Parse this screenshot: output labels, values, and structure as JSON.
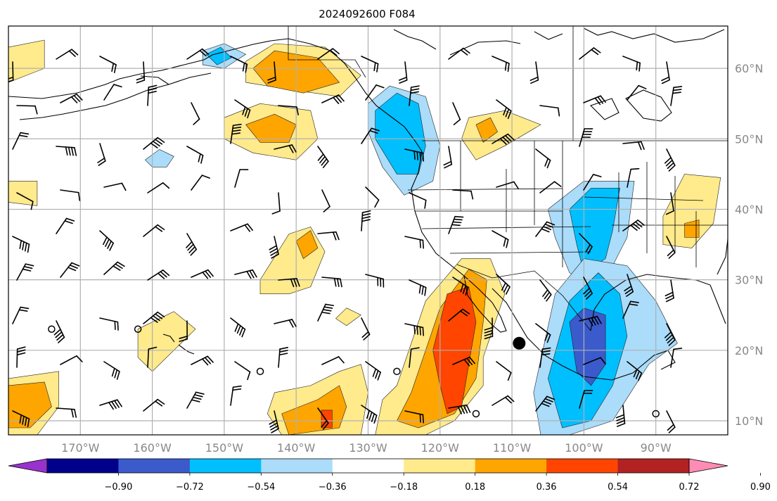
{
  "title": "2024092600 F084",
  "map": {
    "projection": "PlateCarree",
    "lon_range": [
      -180,
      -80
    ],
    "lat_range": [
      8,
      66
    ],
    "grid": true,
    "lat_ticks": [
      {
        "lat": 60,
        "label": "60°N"
      },
      {
        "lat": 50,
        "label": "50°N"
      },
      {
        "lat": 40,
        "label": "40°N"
      },
      {
        "lat": 30,
        "label": "30°N"
      },
      {
        "lat": 20,
        "label": "20°N"
      },
      {
        "lat": 10,
        "label": "10°N"
      }
    ],
    "lon_ticks": [
      {
        "lon": -170,
        "label": "170°W"
      },
      {
        "lon": -160,
        "label": "160°W"
      },
      {
        "lon": -150,
        "label": "150°W"
      },
      {
        "lon": -140,
        "label": "140°W"
      },
      {
        "lon": -130,
        "label": "130°W"
      },
      {
        "lon": -120,
        "label": "120°W"
      },
      {
        "lon": -110,
        "label": "110°W"
      },
      {
        "lon": -100,
        "label": "100°W"
      },
      {
        "lon": -90,
        "label": "90°W"
      }
    ]
  },
  "colorbar": {
    "extend": "both",
    "colors": [
      "#9932cc",
      "#00008b",
      "#3b5bcc",
      "#00bfff",
      "#abdcfa",
      "#ffffff",
      "#ffea8c",
      "#ffa500",
      "#ff4500",
      "#b22222",
      "#ff8cb4"
    ],
    "tick_labels": [
      {
        "value": -0.9,
        "label": "−0.90"
      },
      {
        "value": -0.72,
        "label": "−0.72"
      },
      {
        "value": -0.54,
        "label": "−0.54"
      },
      {
        "value": -0.36,
        "label": "−0.36"
      },
      {
        "value": -0.18,
        "label": "−0.18"
      },
      {
        "value": 0.18,
        "label": "0.18"
      },
      {
        "value": 0.36,
        "label": "0.36"
      },
      {
        "value": 0.54,
        "label": "0.54"
      },
      {
        "value": 0.72,
        "label": "0.72"
      },
      {
        "value": 0.9,
        "label": "0.90"
      }
    ]
  },
  "colors": {
    "pos1": "#ffea8c",
    "pos2": "#ffa500",
    "pos3": "#ff4500",
    "neg1": "#abdcfa",
    "neg2": "#00bfff",
    "neg3": "#3b5bcc"
  },
  "fields": [
    {
      "level": "pos1",
      "pts": [
        [
          -147,
          61
        ],
        [
          -143,
          63.5
        ],
        [
          -136,
          63
        ],
        [
          -131,
          59
        ],
        [
          -134,
          56
        ],
        [
          -141,
          57
        ],
        [
          -147,
          58
        ]
      ]
    },
    {
      "level": "pos2",
      "pts": [
        [
          -146,
          60
        ],
        [
          -143,
          62.5
        ],
        [
          -137,
          61.5
        ],
        [
          -134,
          58
        ],
        [
          -139,
          56.5
        ],
        [
          -144,
          57.5
        ]
      ]
    },
    {
      "level": "pos1",
      "pts": [
        [
          -150,
          53
        ],
        [
          -145,
          55
        ],
        [
          -138,
          54
        ],
        [
          -137,
          50
        ],
        [
          -140,
          47
        ],
        [
          -146,
          48
        ],
        [
          -150,
          50
        ]
      ]
    },
    {
      "level": "pos2",
      "pts": [
        [
          -147,
          52
        ],
        [
          -143,
          53.5
        ],
        [
          -140,
          52
        ],
        [
          -141,
          49.5
        ],
        [
          -145,
          49.5
        ]
      ]
    },
    {
      "level": "pos1",
      "pts": [
        [
          -180,
          63
        ],
        [
          -175,
          64
        ],
        [
          -175,
          60
        ],
        [
          -180,
          58
        ]
      ]
    },
    {
      "level": "pos1",
      "pts": [
        [
          -180,
          44
        ],
        [
          -176,
          44
        ],
        [
          -176,
          40.5
        ],
        [
          -180,
          41
        ]
      ]
    },
    {
      "level": "pos1",
      "pts": [
        [
          -116,
          53
        ],
        [
          -111,
          54
        ],
        [
          -106,
          52
        ],
        [
          -111,
          49
        ],
        [
          -115,
          47
        ],
        [
          -117,
          50
        ]
      ]
    },
    {
      "level": "pos2",
      "pts": [
        [
          -115,
          52
        ],
        [
          -113,
          53
        ],
        [
          -112,
          51
        ],
        [
          -114,
          49.5
        ]
      ]
    },
    {
      "level": "pos1",
      "pts": [
        [
          -145,
          30
        ],
        [
          -141,
          36.5
        ],
        [
          -138,
          37.5
        ],
        [
          -136,
          34
        ],
        [
          -138,
          29
        ],
        [
          -141,
          28
        ],
        [
          -145,
          28
        ]
      ]
    },
    {
      "level": "pos2",
      "pts": [
        [
          -140,
          35.5
        ],
        [
          -138,
          37
        ],
        [
          -137,
          34.5
        ],
        [
          -139,
          33
        ]
      ]
    },
    {
      "level": "pos1",
      "pts": [
        [
          -162,
          23
        ],
        [
          -157,
          25.5
        ],
        [
          -154,
          23
        ],
        [
          -157,
          20
        ],
        [
          -160,
          17
        ],
        [
          -162,
          19
        ]
      ]
    },
    {
      "level": "pos1",
      "pts": [
        [
          -133,
          26
        ],
        [
          -131,
          25
        ],
        [
          -133,
          23.5
        ],
        [
          -134.5,
          24.5
        ]
      ]
    },
    {
      "level": "pos1",
      "pts": [
        [
          -126,
          15
        ],
        [
          -122,
          27
        ],
        [
          -117,
          33
        ],
        [
          -113,
          33
        ],
        [
          -111,
          28
        ],
        [
          -114,
          19
        ],
        [
          -114,
          15
        ],
        [
          -118,
          10
        ],
        [
          -122,
          8
        ],
        [
          -129,
          8
        ],
        [
          -128,
          13
        ]
      ]
    },
    {
      "level": "pos2",
      "pts": [
        [
          -124,
          14
        ],
        [
          -120,
          26
        ],
        [
          -116,
          31.5
        ],
        [
          -113.5,
          30
        ],
        [
          -114,
          24
        ],
        [
          -115,
          16
        ],
        [
          -118,
          11
        ],
        [
          -123,
          9
        ],
        [
          -126,
          10
        ]
      ]
    },
    {
      "level": "pos3",
      "pts": [
        [
          -121,
          20
        ],
        [
          -119,
          28
        ],
        [
          -116,
          29
        ],
        [
          -115,
          24
        ],
        [
          -116,
          18
        ],
        [
          -117,
          12
        ],
        [
          -119,
          11
        ],
        [
          -120,
          15
        ]
      ]
    },
    {
      "level": "pos1",
      "pts": [
        [
          -138,
          15
        ],
        [
          -134,
          17
        ],
        [
          -131,
          18
        ],
        [
          -130,
          14
        ],
        [
          -131,
          8
        ],
        [
          -142,
          8
        ],
        [
          -144,
          11
        ],
        [
          -143,
          14
        ]
      ]
    },
    {
      "level": "pos2",
      "pts": [
        [
          -137,
          13
        ],
        [
          -134,
          15
        ],
        [
          -133,
          12
        ],
        [
          -134,
          9
        ],
        [
          -141,
          8
        ],
        [
          -142,
          11
        ]
      ]
    },
    {
      "level": "pos3",
      "pts": [
        [
          -136.5,
          11.5
        ],
        [
          -135,
          11.5
        ],
        [
          -135,
          9
        ],
        [
          -136.5,
          9
        ]
      ]
    },
    {
      "level": "pos1",
      "pts": [
        [
          -180,
          16
        ],
        [
          -173,
          17
        ],
        [
          -173,
          12
        ],
        [
          -176,
          8
        ],
        [
          -180,
          8
        ]
      ]
    },
    {
      "level": "pos2",
      "pts": [
        [
          -180,
          15
        ],
        [
          -175,
          15.5
        ],
        [
          -174,
          12
        ],
        [
          -177,
          9
        ],
        [
          -180,
          9
        ]
      ]
    },
    {
      "level": "pos1",
      "pts": [
        [
          -89,
          39
        ],
        [
          -86,
          45
        ],
        [
          -81,
          44.5
        ],
        [
          -82,
          38
        ],
        [
          -85,
          34.5
        ],
        [
          -89,
          35
        ]
      ]
    },
    {
      "level": "pos2",
      "pts": [
        [
          -86,
          38
        ],
        [
          -84,
          38.5
        ],
        [
          -84,
          36
        ],
        [
          -86,
          36
        ]
      ]
    },
    {
      "level": "neg1",
      "pts": [
        [
          -130,
          55
        ],
        [
          -127,
          57.5
        ],
        [
          -122,
          56
        ],
        [
          -120,
          49
        ],
        [
          -121,
          44
        ],
        [
          -125,
          42
        ],
        [
          -128,
          46
        ],
        [
          -130,
          51
        ]
      ]
    },
    {
      "level": "neg2",
      "pts": [
        [
          -129,
          54
        ],
        [
          -126,
          56.5
        ],
        [
          -123,
          55
        ],
        [
          -122,
          49
        ],
        [
          -123,
          45
        ],
        [
          -126,
          45
        ],
        [
          -129,
          50
        ]
      ]
    },
    {
      "level": "neg1",
      "pts": [
        [
          -153,
          62.5
        ],
        [
          -150,
          63.5
        ],
        [
          -147,
          62
        ],
        [
          -150,
          60
        ],
        [
          -153,
          60.5
        ]
      ]
    },
    {
      "level": "neg2",
      "pts": [
        [
          -152.5,
          62
        ],
        [
          -150.5,
          63
        ],
        [
          -149,
          61.5
        ],
        [
          -151,
          60.5
        ]
      ]
    },
    {
      "level": "neg1",
      "pts": [
        [
          -105,
          40
        ],
        [
          -100,
          44
        ],
        [
          -93,
          44
        ],
        [
          -94,
          36
        ],
        [
          -96,
          32
        ],
        [
          -99,
          29
        ],
        [
          -102,
          31
        ],
        [
          -104,
          36
        ]
      ]
    },
    {
      "level": "neg2",
      "pts": [
        [
          -102,
          40
        ],
        [
          -99,
          43
        ],
        [
          -95,
          43
        ],
        [
          -96,
          37
        ],
        [
          -97,
          33
        ],
        [
          -100,
          31
        ],
        [
          -101,
          35
        ]
      ]
    },
    {
      "level": "neg1",
      "pts": [
        [
          -107,
          14
        ],
        [
          -104,
          28
        ],
        [
          -100,
          33
        ],
        [
          -94,
          32
        ],
        [
          -90,
          27
        ],
        [
          -87,
          21
        ],
        [
          -91,
          18
        ],
        [
          -96,
          10
        ],
        [
          -102,
          8
        ],
        [
          -106,
          8
        ]
      ]
    },
    {
      "level": "neg2",
      "pts": [
        [
          -105,
          16
        ],
        [
          -102,
          27
        ],
        [
          -98,
          31
        ],
        [
          -95,
          28
        ],
        [
          -94,
          22
        ],
        [
          -96,
          15
        ],
        [
          -99,
          10
        ],
        [
          -103,
          9
        ]
      ]
    },
    {
      "level": "neg3",
      "pts": [
        [
          -102,
          24
        ],
        [
          -100,
          26
        ],
        [
          -97,
          25
        ],
        [
          -97,
          18
        ],
        [
          -99,
          15
        ],
        [
          -101,
          17
        ]
      ]
    },
    {
      "level": "neg1",
      "pts": [
        [
          -161,
          47
        ],
        [
          -159,
          48.5
        ],
        [
          -157,
          47.5
        ],
        [
          -158,
          46
        ],
        [
          -160,
          46
        ]
      ]
    }
  ],
  "calm_markers": [
    [
      -174,
      23
    ],
    [
      -162,
      23
    ],
    [
      -145,
      17
    ],
    [
      -126,
      17
    ],
    [
      -115,
      11
    ],
    [
      -90,
      11
    ]
  ],
  "point_marker": [
    -109,
    21
  ]
}
